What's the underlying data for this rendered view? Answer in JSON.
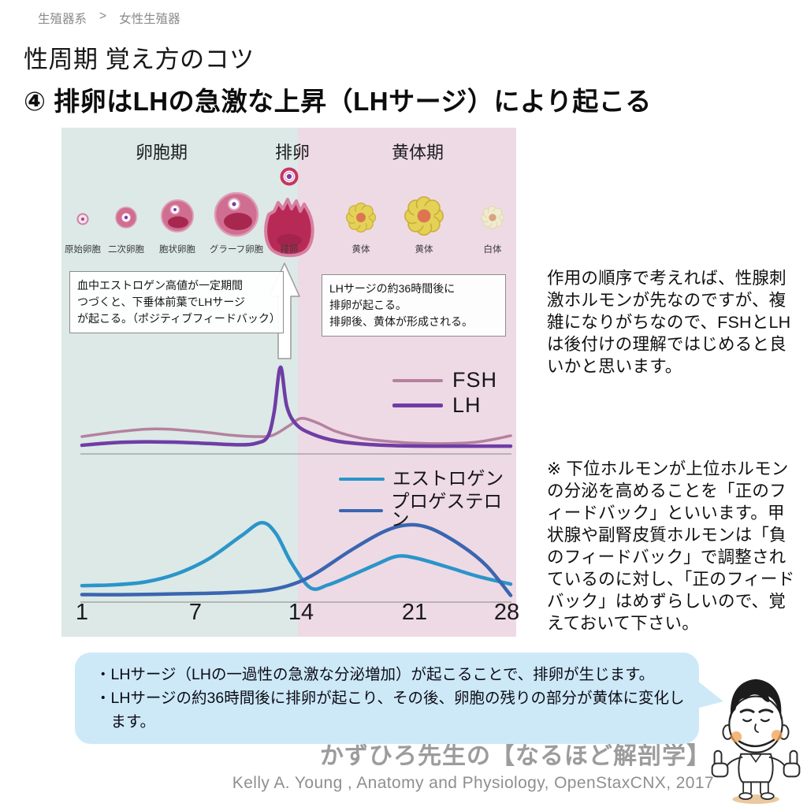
{
  "breadcrumb": {
    "section": "生殖器系",
    "separator": ">",
    "page": "女性生殖器"
  },
  "heading": {
    "title": "性周期 覚え方のコツ",
    "point": "④ 排卵はLHの急激な上昇（LHサージ）により起こる"
  },
  "cycle_diagram": {
    "phase_labels": [
      "卵胞期",
      "排卵",
      "黄体期"
    ],
    "stage_labels": [
      "原始卵胞",
      "二次卵胞",
      "胞状卵胞",
      "グラーフ卵胞",
      "排卵",
      "黄体",
      "黄体",
      "白体"
    ],
    "callout_left": "血中エストロゲン高値が一定期間\nつづくと、下垂体前葉でLHサージ\nが起こる。（ポジティブフィードバック）",
    "callout_right": "LHサージの約36時間後に\n排卵が起こる。\n排卵後、黄体が形成される。",
    "day_ticks": [
      "1",
      "7",
      "14",
      "21",
      "28"
    ],
    "colors": {
      "follicular_bg": "#dce9e7",
      "luteal_bg": "#eedae5",
      "axis": "#9a9a9a",
      "fsh": "#b5819f",
      "lh": "#6f3da5",
      "estrogen": "#2b95c9",
      "progesterone": "#3a66b0"
    }
  },
  "legends": {
    "fsh": "FSH",
    "lh": "LH",
    "estrogen": "エストロゲン",
    "progesterone": "プロゲステロン"
  },
  "chart_data": [
    {
      "type": "line",
      "x_ticks": [
        1,
        7,
        14,
        21,
        28
      ],
      "y_range": [
        0,
        10.5
      ],
      "note": "pituitary hormones over 28-day cycle, values estimated from curves (arbitrary units)",
      "series": [
        {
          "name": "FSH",
          "color": "#b5819f",
          "points": [
            [
              1,
              2.0
            ],
            [
              3,
              2.5
            ],
            [
              5,
              2.85
            ],
            [
              6.5,
              2.85
            ],
            [
              8.5,
              2.55
            ],
            [
              10.5,
              2.15
            ],
            [
              12,
              2.0
            ],
            [
              13,
              2.15
            ],
            [
              14,
              3.2
            ],
            [
              14.8,
              4.1
            ],
            [
              15.8,
              3.6
            ],
            [
              17,
              2.6
            ],
            [
              18.5,
              1.85
            ],
            [
              20,
              1.5
            ],
            [
              22,
              1.25
            ],
            [
              24,
              1.2
            ],
            [
              26,
              1.4
            ],
            [
              28,
              2.1
            ]
          ]
        },
        {
          "name": "LH",
          "color": "#6f3da5",
          "points": [
            [
              1,
              1.0
            ],
            [
              3,
              1.3
            ],
            [
              5,
              1.4
            ],
            [
              7,
              1.35
            ],
            [
              9,
              1.2
            ],
            [
              11,
              1.05
            ],
            [
              12,
              1.25
            ],
            [
              12.7,
              2.0
            ],
            [
              13.1,
              4.8
            ],
            [
              13.5,
              10.0
            ],
            [
              13.9,
              5.5
            ],
            [
              14.5,
              3.4
            ],
            [
              15.5,
              2.3
            ],
            [
              17,
              1.5
            ],
            [
              19,
              1.1
            ],
            [
              21,
              0.95
            ],
            [
              23,
              0.9
            ],
            [
              25,
              0.9
            ],
            [
              28,
              0.9
            ]
          ]
        }
      ]
    },
    {
      "type": "line",
      "x_ticks": [
        1,
        7,
        14,
        21,
        28
      ],
      "y_range": [
        0,
        5.5
      ],
      "note": "ovarian hormones over 28-day cycle, values estimated from curves (arbitrary units)",
      "series": [
        {
          "name": "エストロゲン",
          "color": "#2b95c9",
          "points": [
            [
              1,
              1.1
            ],
            [
              3,
              1.15
            ],
            [
              5,
              1.35
            ],
            [
              7,
              1.9
            ],
            [
              9,
              2.9
            ],
            [
              11,
              4.4
            ],
            [
              12.3,
              5.3
            ],
            [
              13.2,
              4.6
            ],
            [
              14.2,
              2.6
            ],
            [
              15.4,
              0.95
            ],
            [
              16.5,
              1.15
            ],
            [
              18,
              1.8
            ],
            [
              19.5,
              2.5
            ],
            [
              20.8,
              3.05
            ],
            [
              22,
              2.95
            ],
            [
              24,
              2.35
            ],
            [
              26,
              1.7
            ],
            [
              28,
              1.2
            ]
          ]
        },
        {
          "name": "プロゲステロン",
          "color": "#3a66b0",
          "points": [
            [
              1,
              0.5
            ],
            [
              4,
              0.5
            ],
            [
              7,
              0.55
            ],
            [
              10,
              0.62
            ],
            [
              12,
              0.72
            ],
            [
              13,
              0.85
            ],
            [
              14,
              1.1
            ],
            [
              15,
              1.5
            ],
            [
              16,
              2.1
            ],
            [
              18,
              3.5
            ],
            [
              20,
              4.7
            ],
            [
              21.5,
              5.15
            ],
            [
              23,
              4.9
            ],
            [
              25,
              3.7
            ],
            [
              26.5,
              2.4
            ],
            [
              28,
              0.45
            ]
          ]
        }
      ]
    }
  ],
  "notes": {
    "paragraph1": "作用の順序で考えれば、性腺刺激ホルモンが先なのですが、複雑になりがちなので、FSHとLHは後付けの理解ではじめると良いかと思います。",
    "paragraph2": "※ 下位ホルモンが上位ホルモンの分泌を高めることを「正のフィードバック」といいます。甲状腺や副腎皮質ホルモンは「負のフィードバック」で調整されているのに対し、「正のフィードバック」はめずらしいので、覚えておいて下さい。"
  },
  "summary": {
    "bubble_color": "#cde9f8",
    "bullets": [
      "・LHサージ（LHの一過性の急激な分泌増加）が起こることで、排卵が生じます。",
      "・LHサージの約36時間後に排卵が起こり、その後、卵胞の残りの部分が黄体に変化します。"
    ]
  },
  "footer": {
    "brand": "かずひろ先生の【なるほど解剖学】",
    "citation": "Kelly A. Young , Anatomy and Physiology, OpenStaxCNX, 2017"
  }
}
